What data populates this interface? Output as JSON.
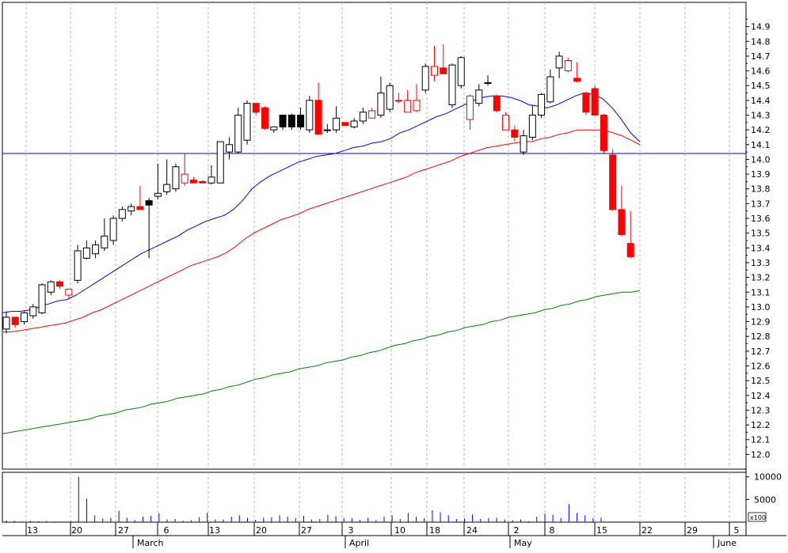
{
  "chart_data": {
    "type": "candlestick",
    "y_axis": {
      "min": 11.9,
      "max": 15.0,
      "tick_labels": [
        "12.0",
        "12.1",
        "12.2",
        "12.3",
        "12.4",
        "12.5",
        "12.6",
        "12.7",
        "12.8",
        "12.9",
        "13.0",
        "13.1",
        "13.2",
        "13.3",
        "13.4",
        "13.5",
        "13.6",
        "13.7",
        "13.8",
        "13.9",
        "14.0",
        "14.1",
        "14.2",
        "14.3",
        "14.4",
        "14.5",
        "14.6",
        "14.7",
        "14.8",
        "14.9"
      ]
    },
    "x_axis": {
      "day_labels": [
        "13",
        "20",
        "27",
        "6",
        "13",
        "20",
        "27",
        "3",
        "10",
        "18",
        "24",
        "2",
        "8",
        "15",
        "22",
        "29",
        "5"
      ],
      "month_labels": [
        "March",
        "April",
        "May",
        "June"
      ]
    },
    "horizontal_line": 14.04,
    "colors": {
      "up": "#ffffff",
      "down": "#ff0000",
      "ma_short": "#0000ff",
      "ma_mid": "#ff0000",
      "ma_long": "#008000",
      "hline": "#0000cc",
      "volume": "#0000ff",
      "grid": "#b4b4b4"
    },
    "candles": [
      {
        "o": 12.85,
        "h": 12.97,
        "l": 12.82,
        "c": 12.93,
        "col": "up"
      },
      {
        "o": 12.93,
        "h": 12.93,
        "l": 12.86,
        "c": 12.88,
        "col": "red"
      },
      {
        "o": 12.9,
        "h": 12.97,
        "l": 12.88,
        "c": 12.96,
        "col": "up"
      },
      {
        "o": 12.94,
        "h": 13.02,
        "l": 12.92,
        "c": 13.0,
        "col": "up"
      },
      {
        "o": 12.96,
        "h": 13.16,
        "l": 12.95,
        "c": 13.15,
        "col": "up"
      },
      {
        "o": 13.1,
        "h": 13.18,
        "l": 13.08,
        "c": 13.17,
        "col": "up"
      },
      {
        "o": 13.17,
        "h": 13.18,
        "l": 13.12,
        "c": 13.14,
        "col": "red"
      },
      {
        "o": 13.08,
        "h": 13.1,
        "l": 13.06,
        "c": 13.12,
        "col": "hollowred"
      },
      {
        "o": 13.18,
        "h": 13.42,
        "l": 13.16,
        "c": 13.38,
        "col": "up"
      },
      {
        "o": 13.33,
        "h": 13.45,
        "l": 13.32,
        "c": 13.4,
        "col": "up"
      },
      {
        "o": 13.36,
        "h": 13.45,
        "l": 13.33,
        "c": 13.42,
        "col": "up"
      },
      {
        "o": 13.4,
        "h": 13.6,
        "l": 13.38,
        "c": 13.48,
        "col": "up"
      },
      {
        "o": 13.45,
        "h": 13.62,
        "l": 13.42,
        "c": 13.6,
        "col": "up"
      },
      {
        "o": 13.6,
        "h": 13.68,
        "l": 13.58,
        "c": 13.66,
        "col": "up"
      },
      {
        "o": 13.65,
        "h": 13.7,
        "l": 13.62,
        "c": 13.68,
        "col": "up"
      },
      {
        "o": 13.68,
        "h": 13.82,
        "l": 13.66,
        "c": 13.66,
        "col": "red"
      },
      {
        "o": 13.69,
        "h": 13.74,
        "l": 13.33,
        "c": 13.72,
        "col": "black"
      },
      {
        "o": 13.75,
        "h": 13.97,
        "l": 13.73,
        "c": 13.77,
        "col": "up"
      },
      {
        "o": 13.78,
        "h": 14.0,
        "l": 13.76,
        "c": 13.83,
        "col": "up"
      },
      {
        "o": 13.8,
        "h": 13.97,
        "l": 13.78,
        "c": 13.95,
        "col": "up"
      },
      {
        "o": 13.9,
        "h": 14.04,
        "l": 13.82,
        "c": 13.84,
        "col": "hollowred"
      },
      {
        "o": 13.86,
        "h": 13.88,
        "l": 13.84,
        "c": 13.84,
        "col": "red"
      },
      {
        "o": 13.85,
        "h": 13.86,
        "l": 13.84,
        "c": 13.84,
        "col": "red"
      },
      {
        "o": 13.84,
        "h": 13.96,
        "l": 13.83,
        "c": 13.88,
        "col": "up"
      },
      {
        "o": 13.84,
        "h": 14.1,
        "l": 13.84,
        "c": 14.12,
        "col": "up"
      },
      {
        "o": 14.05,
        "h": 14.15,
        "l": 14.0,
        "c": 14.1,
        "col": "up"
      },
      {
        "o": 14.05,
        "h": 14.35,
        "l": 14.04,
        "c": 14.3,
        "col": "up"
      },
      {
        "o": 14.13,
        "h": 14.4,
        "l": 14.1,
        "c": 14.38,
        "col": "up"
      },
      {
        "o": 14.38,
        "h": 14.38,
        "l": 14.3,
        "c": 14.32,
        "col": "red"
      },
      {
        "o": 14.35,
        "h": 14.36,
        "l": 14.2,
        "c": 14.21,
        "col": "red"
      },
      {
        "o": 14.2,
        "h": 14.22,
        "l": 14.18,
        "c": 14.22,
        "col": "up"
      },
      {
        "o": 14.3,
        "h": 14.3,
        "l": 14.2,
        "c": 14.22,
        "col": "black"
      },
      {
        "o": 14.3,
        "h": 14.31,
        "l": 14.2,
        "c": 14.22,
        "col": "black"
      },
      {
        "o": 14.3,
        "h": 14.35,
        "l": 14.2,
        "c": 14.22,
        "col": "black"
      },
      {
        "o": 14.2,
        "h": 14.43,
        "l": 14.18,
        "c": 14.4,
        "col": "up"
      },
      {
        "o": 14.4,
        "h": 14.52,
        "l": 14.17,
        "c": 14.17,
        "col": "red"
      },
      {
        "o": 14.2,
        "h": 14.24,
        "l": 14.18,
        "c": 14.2,
        "col": "black"
      },
      {
        "o": 14.2,
        "h": 14.36,
        "l": 14.18,
        "c": 14.28,
        "col": "up"
      },
      {
        "o": 14.25,
        "h": 14.25,
        "l": 14.23,
        "c": 14.23,
        "col": "red"
      },
      {
        "o": 14.22,
        "h": 14.28,
        "l": 14.21,
        "c": 14.26,
        "col": "up"
      },
      {
        "o": 14.26,
        "h": 14.35,
        "l": 14.24,
        "c": 14.32,
        "col": "up"
      },
      {
        "o": 14.33,
        "h": 14.35,
        "l": 14.28,
        "c": 14.28,
        "col": "hollowred"
      },
      {
        "o": 14.3,
        "h": 14.56,
        "l": 14.28,
        "c": 14.45,
        "col": "up"
      },
      {
        "o": 14.34,
        "h": 14.52,
        "l": 14.32,
        "c": 14.5,
        "col": "up"
      },
      {
        "o": 14.4,
        "h": 14.45,
        "l": 14.38,
        "c": 14.4,
        "col": "red"
      },
      {
        "o": 14.4,
        "h": 14.47,
        "l": 14.32,
        "c": 14.32,
        "col": "hollowred"
      },
      {
        "o": 14.4,
        "h": 14.51,
        "l": 14.32,
        "c": 14.33,
        "col": "hollowred"
      },
      {
        "o": 14.47,
        "h": 14.65,
        "l": 14.45,
        "c": 14.63,
        "col": "up"
      },
      {
        "o": 14.63,
        "h": 14.77,
        "l": 14.53,
        "c": 14.57,
        "col": "hollowred"
      },
      {
        "o": 14.62,
        "h": 14.78,
        "l": 14.58,
        "c": 14.58,
        "col": "red"
      },
      {
        "o": 14.37,
        "h": 14.65,
        "l": 14.35,
        "c": 14.64,
        "col": "up"
      },
      {
        "o": 14.5,
        "h": 14.7,
        "l": 14.48,
        "c": 14.69,
        "col": "up"
      },
      {
        "o": 14.43,
        "h": 14.44,
        "l": 14.2,
        "c": 14.27,
        "col": "hollowred"
      },
      {
        "o": 14.38,
        "h": 14.51,
        "l": 14.36,
        "c": 14.47,
        "col": "up"
      },
      {
        "o": 14.52,
        "h": 14.57,
        "l": 14.5,
        "c": 14.52,
        "col": "black"
      },
      {
        "o": 14.43,
        "h": 14.44,
        "l": 14.32,
        "c": 14.33,
        "col": "red"
      },
      {
        "o": 14.3,
        "h": 14.32,
        "l": 14.2,
        "c": 14.2,
        "col": "hollowred"
      },
      {
        "o": 14.2,
        "h": 14.23,
        "l": 14.12,
        "c": 14.15,
        "col": "red"
      },
      {
        "o": 14.05,
        "h": 14.2,
        "l": 14.03,
        "c": 14.16,
        "col": "up"
      },
      {
        "o": 14.15,
        "h": 14.37,
        "l": 14.13,
        "c": 14.3,
        "col": "up"
      },
      {
        "o": 14.3,
        "h": 14.45,
        "l": 14.28,
        "c": 14.44,
        "col": "up"
      },
      {
        "o": 14.39,
        "h": 14.61,
        "l": 14.38,
        "c": 14.56,
        "col": "up"
      },
      {
        "o": 14.62,
        "h": 14.73,
        "l": 14.55,
        "c": 14.7,
        "col": "up"
      },
      {
        "o": 14.67,
        "h": 14.69,
        "l": 14.59,
        "c": 14.6,
        "col": "hollowred"
      },
      {
        "o": 14.55,
        "h": 14.66,
        "l": 14.52,
        "c": 14.53,
        "col": "red"
      },
      {
        "o": 14.45,
        "h": 14.46,
        "l": 14.3,
        "c": 14.32,
        "col": "red"
      },
      {
        "o": 14.48,
        "h": 14.5,
        "l": 14.3,
        "c": 14.3,
        "col": "red"
      },
      {
        "o": 14.3,
        "h": 14.31,
        "l": 14.04,
        "c": 14.06,
        "col": "red"
      },
      {
        "o": 14.03,
        "h": 14.07,
        "l": 13.65,
        "c": 13.66,
        "col": "red"
      },
      {
        "o": 13.66,
        "h": 13.82,
        "l": 13.48,
        "c": 13.49,
        "col": "red"
      },
      {
        "o": 13.43,
        "h": 13.65,
        "l": 13.33,
        "c": 13.34,
        "col": "red"
      }
    ],
    "ma_short": [
      12.96,
      12.97,
      12.97,
      12.98,
      13.0,
      13.02,
      13.04,
      13.05,
      13.08,
      13.12,
      13.16,
      13.2,
      13.24,
      13.28,
      13.32,
      13.36,
      13.39,
      13.42,
      13.45,
      13.48,
      13.52,
      13.55,
      13.58,
      13.6,
      13.62,
      13.66,
      13.72,
      13.8,
      13.85,
      13.89,
      13.92,
      13.95,
      13.98,
      14.0,
      14.02,
      14.03,
      14.04,
      14.06,
      14.08,
      14.09,
      14.11,
      14.12,
      14.14,
      14.18,
      14.2,
      14.23,
      14.26,
      14.29,
      14.31,
      14.34,
      14.37,
      14.4,
      14.42,
      14.43,
      14.43,
      14.42,
      14.4,
      14.37,
      14.36,
      14.35,
      14.37,
      14.4,
      14.43,
      14.45,
      14.44,
      14.41,
      14.35,
      14.27,
      14.18,
      14.12
    ],
    "ma_mid": [
      12.83,
      12.83,
      12.84,
      12.85,
      12.86,
      12.87,
      12.88,
      12.89,
      12.91,
      12.93,
      12.96,
      12.98,
      13.01,
      13.04,
      13.07,
      13.1,
      13.13,
      13.16,
      13.19,
      13.22,
      13.25,
      13.28,
      13.3,
      13.32,
      13.34,
      13.37,
      13.41,
      13.46,
      13.5,
      13.53,
      13.56,
      13.59,
      13.61,
      13.63,
      13.66,
      13.68,
      13.7,
      13.72,
      13.74,
      13.76,
      13.78,
      13.8,
      13.82,
      13.84,
      13.86,
      13.88,
      13.91,
      13.93,
      13.95,
      13.97,
      13.99,
      14.02,
      14.04,
      14.06,
      14.08,
      14.09,
      14.1,
      14.11,
      14.12,
      14.12,
      14.14,
      14.15,
      14.17,
      14.18,
      14.2,
      14.2,
      14.2,
      14.2,
      14.18,
      14.16,
      14.13,
      14.1
    ],
    "ma_long": [
      12.14,
      12.15,
      12.16,
      12.17,
      12.18,
      12.19,
      12.2,
      12.21,
      12.22,
      12.23,
      12.24,
      12.26,
      12.27,
      12.28,
      12.3,
      12.31,
      12.32,
      12.34,
      12.35,
      12.36,
      12.38,
      12.39,
      12.4,
      12.41,
      12.43,
      12.44,
      12.46,
      12.47,
      12.49,
      12.51,
      12.52,
      12.54,
      12.55,
      12.56,
      12.58,
      12.59,
      12.6,
      12.62,
      12.63,
      12.64,
      12.66,
      12.67,
      12.69,
      12.7,
      12.72,
      12.74,
      12.75,
      12.77,
      12.78,
      12.8,
      12.81,
      12.83,
      12.84,
      12.86,
      12.87,
      12.88,
      12.9,
      12.91,
      12.93,
      12.94,
      12.95,
      12.96,
      12.98,
      12.99,
      13.01,
      13.02,
      13.04,
      13.05,
      13.07,
      13.08,
      13.09,
      13.1,
      13.1,
      13.11
    ],
    "volume_axis": {
      "max": 11000,
      "tick_labels": [
        "10000",
        "5000"
      ],
      "multiplier_label": "x100"
    },
    "volume": [
      400,
      300,
      150,
      300,
      200,
      250,
      150,
      100,
      200,
      10000,
      5200,
      1500,
      800,
      1000,
      2500,
      1000,
      400,
      1200,
      1400,
      2000,
      600,
      700,
      300,
      400,
      1100,
      2100,
      600,
      600,
      1200,
      1500,
      900,
      500,
      1000,
      1100,
      1500,
      1200,
      900,
      1400,
      600,
      700,
      1600,
      1300,
      900,
      900,
      500,
      1000,
      400,
      1200,
      1500,
      700,
      2000,
      1200,
      900,
      2600,
      2200,
      1500,
      700,
      800,
      1700,
      700,
      900,
      1000,
      600,
      400,
      600,
      200,
      1200,
      1900,
      1600,
      900,
      4000,
      2000,
      1500,
      900,
      1000
    ]
  }
}
